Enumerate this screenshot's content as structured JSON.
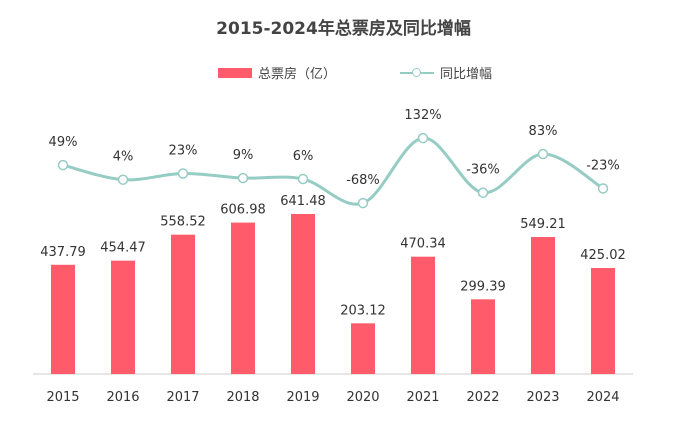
{
  "chart_data": {
    "type": "bar+line",
    "title": "2015-2024年总票房及同比增幅",
    "categories": [
      "2015",
      "2016",
      "2017",
      "2018",
      "2019",
      "2020",
      "2021",
      "2022",
      "2023",
      "2024"
    ],
    "series": [
      {
        "name": "总票房（亿）",
        "type": "bar",
        "values": [
          437.79,
          454.47,
          558.52,
          606.98,
          641.48,
          203.12,
          470.34,
          299.39,
          549.21,
          425.02
        ],
        "labels": [
          "437.79",
          "454.47",
          "558.52",
          "606.98",
          "641.48",
          "203.12",
          "470.34",
          "299.39",
          "549.21",
          "425.02"
        ],
        "color": "#FF5B6A"
      },
      {
        "name": "同比增幅",
        "type": "line",
        "smooth": true,
        "values": [
          49,
          4,
          23,
          9,
          6,
          -68,
          132,
          -36,
          83,
          -23
        ],
        "labels": [
          "49%",
          "4%",
          "23%",
          "9%",
          "6%",
          "-68%",
          "132%",
          "-36%",
          "83%",
          "-23%"
        ],
        "color": "#95CCC4"
      }
    ],
    "legend": "top-center",
    "grid": false
  }
}
